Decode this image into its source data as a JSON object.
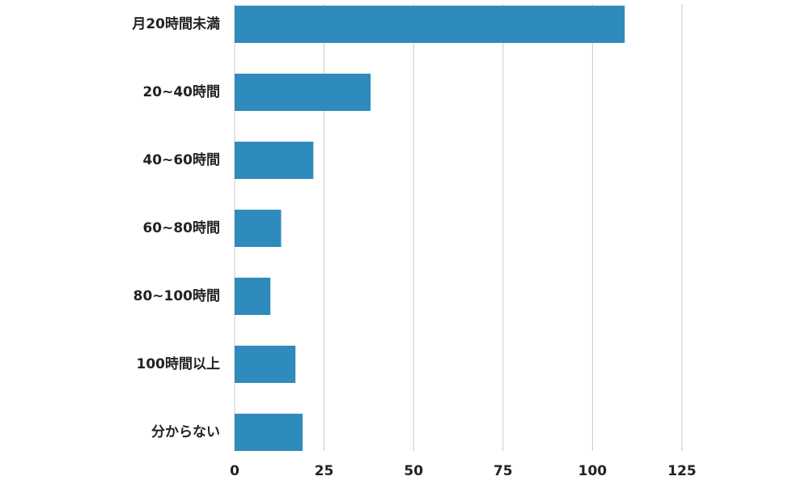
{
  "chart_data": {
    "type": "hbar",
    "categories": [
      "月20時間未満",
      "20~40時間",
      "40~60時間",
      "60~80時間",
      "80~100時間",
      "100時間以上",
      "分からない"
    ],
    "values": [
      109,
      38,
      22,
      13,
      10,
      17,
      19
    ],
    "color": "#2e8bbb",
    "xlim": [
      0,
      125
    ],
    "xticks": [
      0,
      25,
      50,
      75,
      100,
      125
    ],
    "grid": true
  }
}
